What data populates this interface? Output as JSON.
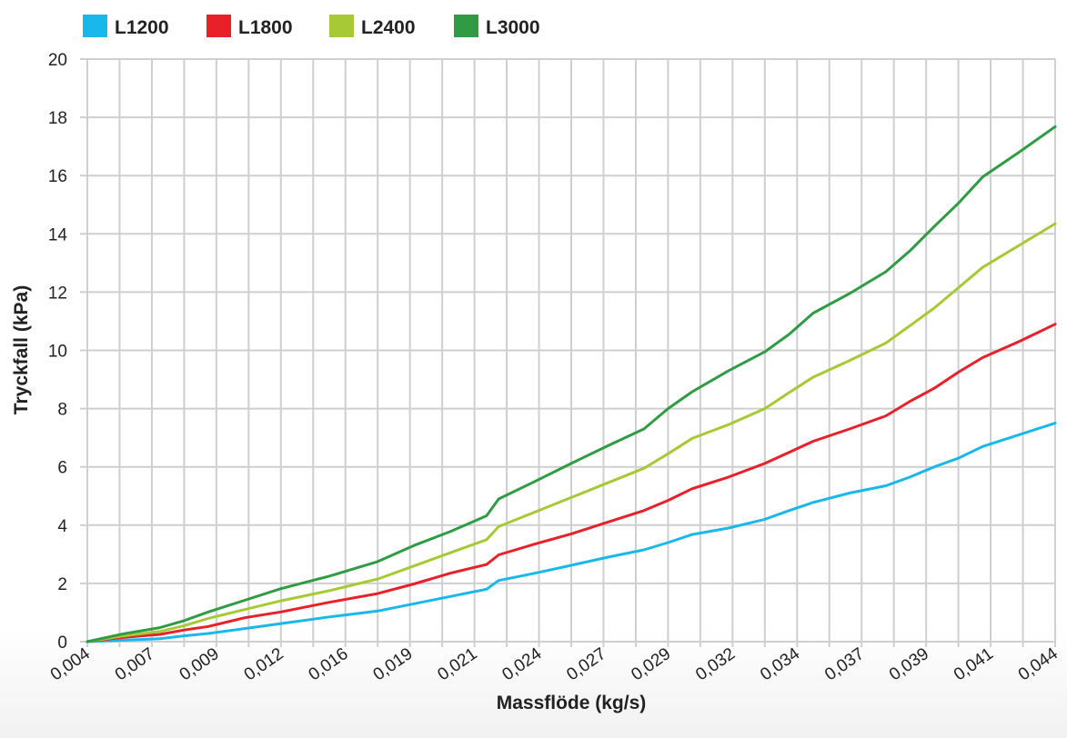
{
  "chart_data": {
    "type": "line",
    "title": "",
    "xlabel": "Massflöde (kg/s)",
    "ylabel": "Tryckfall (kPa)",
    "ylim": [
      0,
      20
    ],
    "yticks": [
      "0",
      "2",
      "4",
      "6",
      "8",
      "10",
      "12",
      "14",
      "16",
      "18",
      "20"
    ],
    "xticks": [
      "0,004",
      "0,007",
      "0,009",
      "0,012",
      "0,016",
      "0,019",
      "0,021",
      "0,024",
      "0,027",
      "0,029",
      "0,032",
      "0,034",
      "0,037",
      "0,039",
      "0,041",
      "0,044"
    ],
    "grid": true,
    "legend_position": "top-left",
    "x": [
      0.004,
      0.0055,
      0.007,
      0.008,
      0.009,
      0.0105,
      0.012,
      0.014,
      0.016,
      0.0175,
      0.019,
      0.0205,
      0.021,
      0.0225,
      0.024,
      0.0255,
      0.027,
      0.028,
      0.029,
      0.0305,
      0.032,
      0.033,
      0.034,
      0.0355,
      0.037,
      0.038,
      0.039,
      0.04,
      0.041,
      0.0425,
      0.044
    ],
    "series": [
      {
        "name": "L1200",
        "color": "#1ab8ea",
        "values": [
          0,
          0.05,
          0.1,
          0.2,
          0.28,
          0.45,
          0.62,
          0.85,
          1.05,
          1.3,
          1.55,
          1.8,
          2.1,
          2.35,
          2.62,
          2.9,
          3.15,
          3.4,
          3.68,
          3.9,
          4.2,
          4.5,
          4.78,
          5.1,
          5.35,
          5.65,
          6.0,
          6.3,
          6.7,
          7.1,
          7.5
        ]
      },
      {
        "name": "L1800",
        "color": "#e8202a",
        "values": [
          0,
          0.15,
          0.25,
          0.4,
          0.52,
          0.82,
          1.02,
          1.35,
          1.65,
          1.98,
          2.35,
          2.65,
          2.98,
          3.35,
          3.7,
          4.1,
          4.5,
          4.85,
          5.25,
          5.65,
          6.12,
          6.5,
          6.88,
          7.3,
          7.75,
          8.25,
          8.7,
          9.25,
          9.75,
          10.3,
          10.9
        ]
      },
      {
        "name": "L2400",
        "color": "#a7c936",
        "values": [
          0,
          0.2,
          0.35,
          0.55,
          0.8,
          1.1,
          1.4,
          1.75,
          2.15,
          2.6,
          3.05,
          3.5,
          3.95,
          4.45,
          4.95,
          5.45,
          5.95,
          6.45,
          6.98,
          7.45,
          8.0,
          8.55,
          9.08,
          9.65,
          10.25,
          10.85,
          11.45,
          12.15,
          12.85,
          13.6,
          14.35
        ]
      },
      {
        "name": "L3000",
        "color": "#2f9c45",
        "values": [
          0,
          0.27,
          0.48,
          0.72,
          1.02,
          1.42,
          1.82,
          2.25,
          2.75,
          3.3,
          3.78,
          4.32,
          4.9,
          5.5,
          6.12,
          6.72,
          7.3,
          8.0,
          8.58,
          9.3,
          9.95,
          10.55,
          11.28,
          11.95,
          12.7,
          13.42,
          14.25,
          15.05,
          15.95,
          16.8,
          17.68
        ]
      }
    ]
  }
}
